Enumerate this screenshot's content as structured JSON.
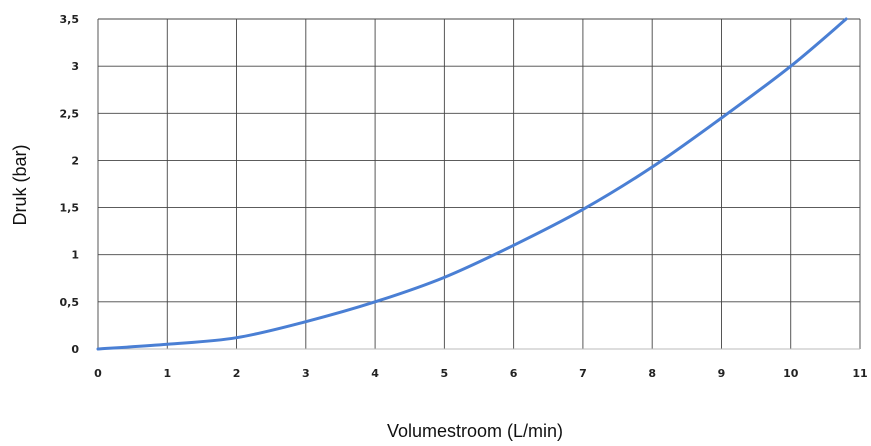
{
  "chart_data": {
    "type": "line",
    "title": "",
    "xlabel": "Volumestroom  (L/min)",
    "ylabel": "Druk (bar)",
    "xlim": [
      0,
      11
    ],
    "ylim": [
      0,
      3.5
    ],
    "grid": true,
    "x_ticks": [
      "0",
      "1",
      "2",
      "3",
      "4",
      "5",
      "6",
      "7",
      "8",
      "9",
      "10",
      "11"
    ],
    "y_ticks": [
      "0",
      "0,5",
      "1",
      "1,5",
      "2",
      "2,5",
      "3",
      "3,5"
    ],
    "line_color": "#4a7fd4",
    "series": [
      {
        "x": [
          0,
          1,
          2,
          3,
          4,
          5,
          6,
          7,
          8,
          9,
          10,
          10.8
        ],
        "values": [
          0,
          0.05,
          0.12,
          0.29,
          0.5,
          0.76,
          1.1,
          1.48,
          1.93,
          2.45,
          3.0,
          3.5
        ]
      }
    ]
  }
}
